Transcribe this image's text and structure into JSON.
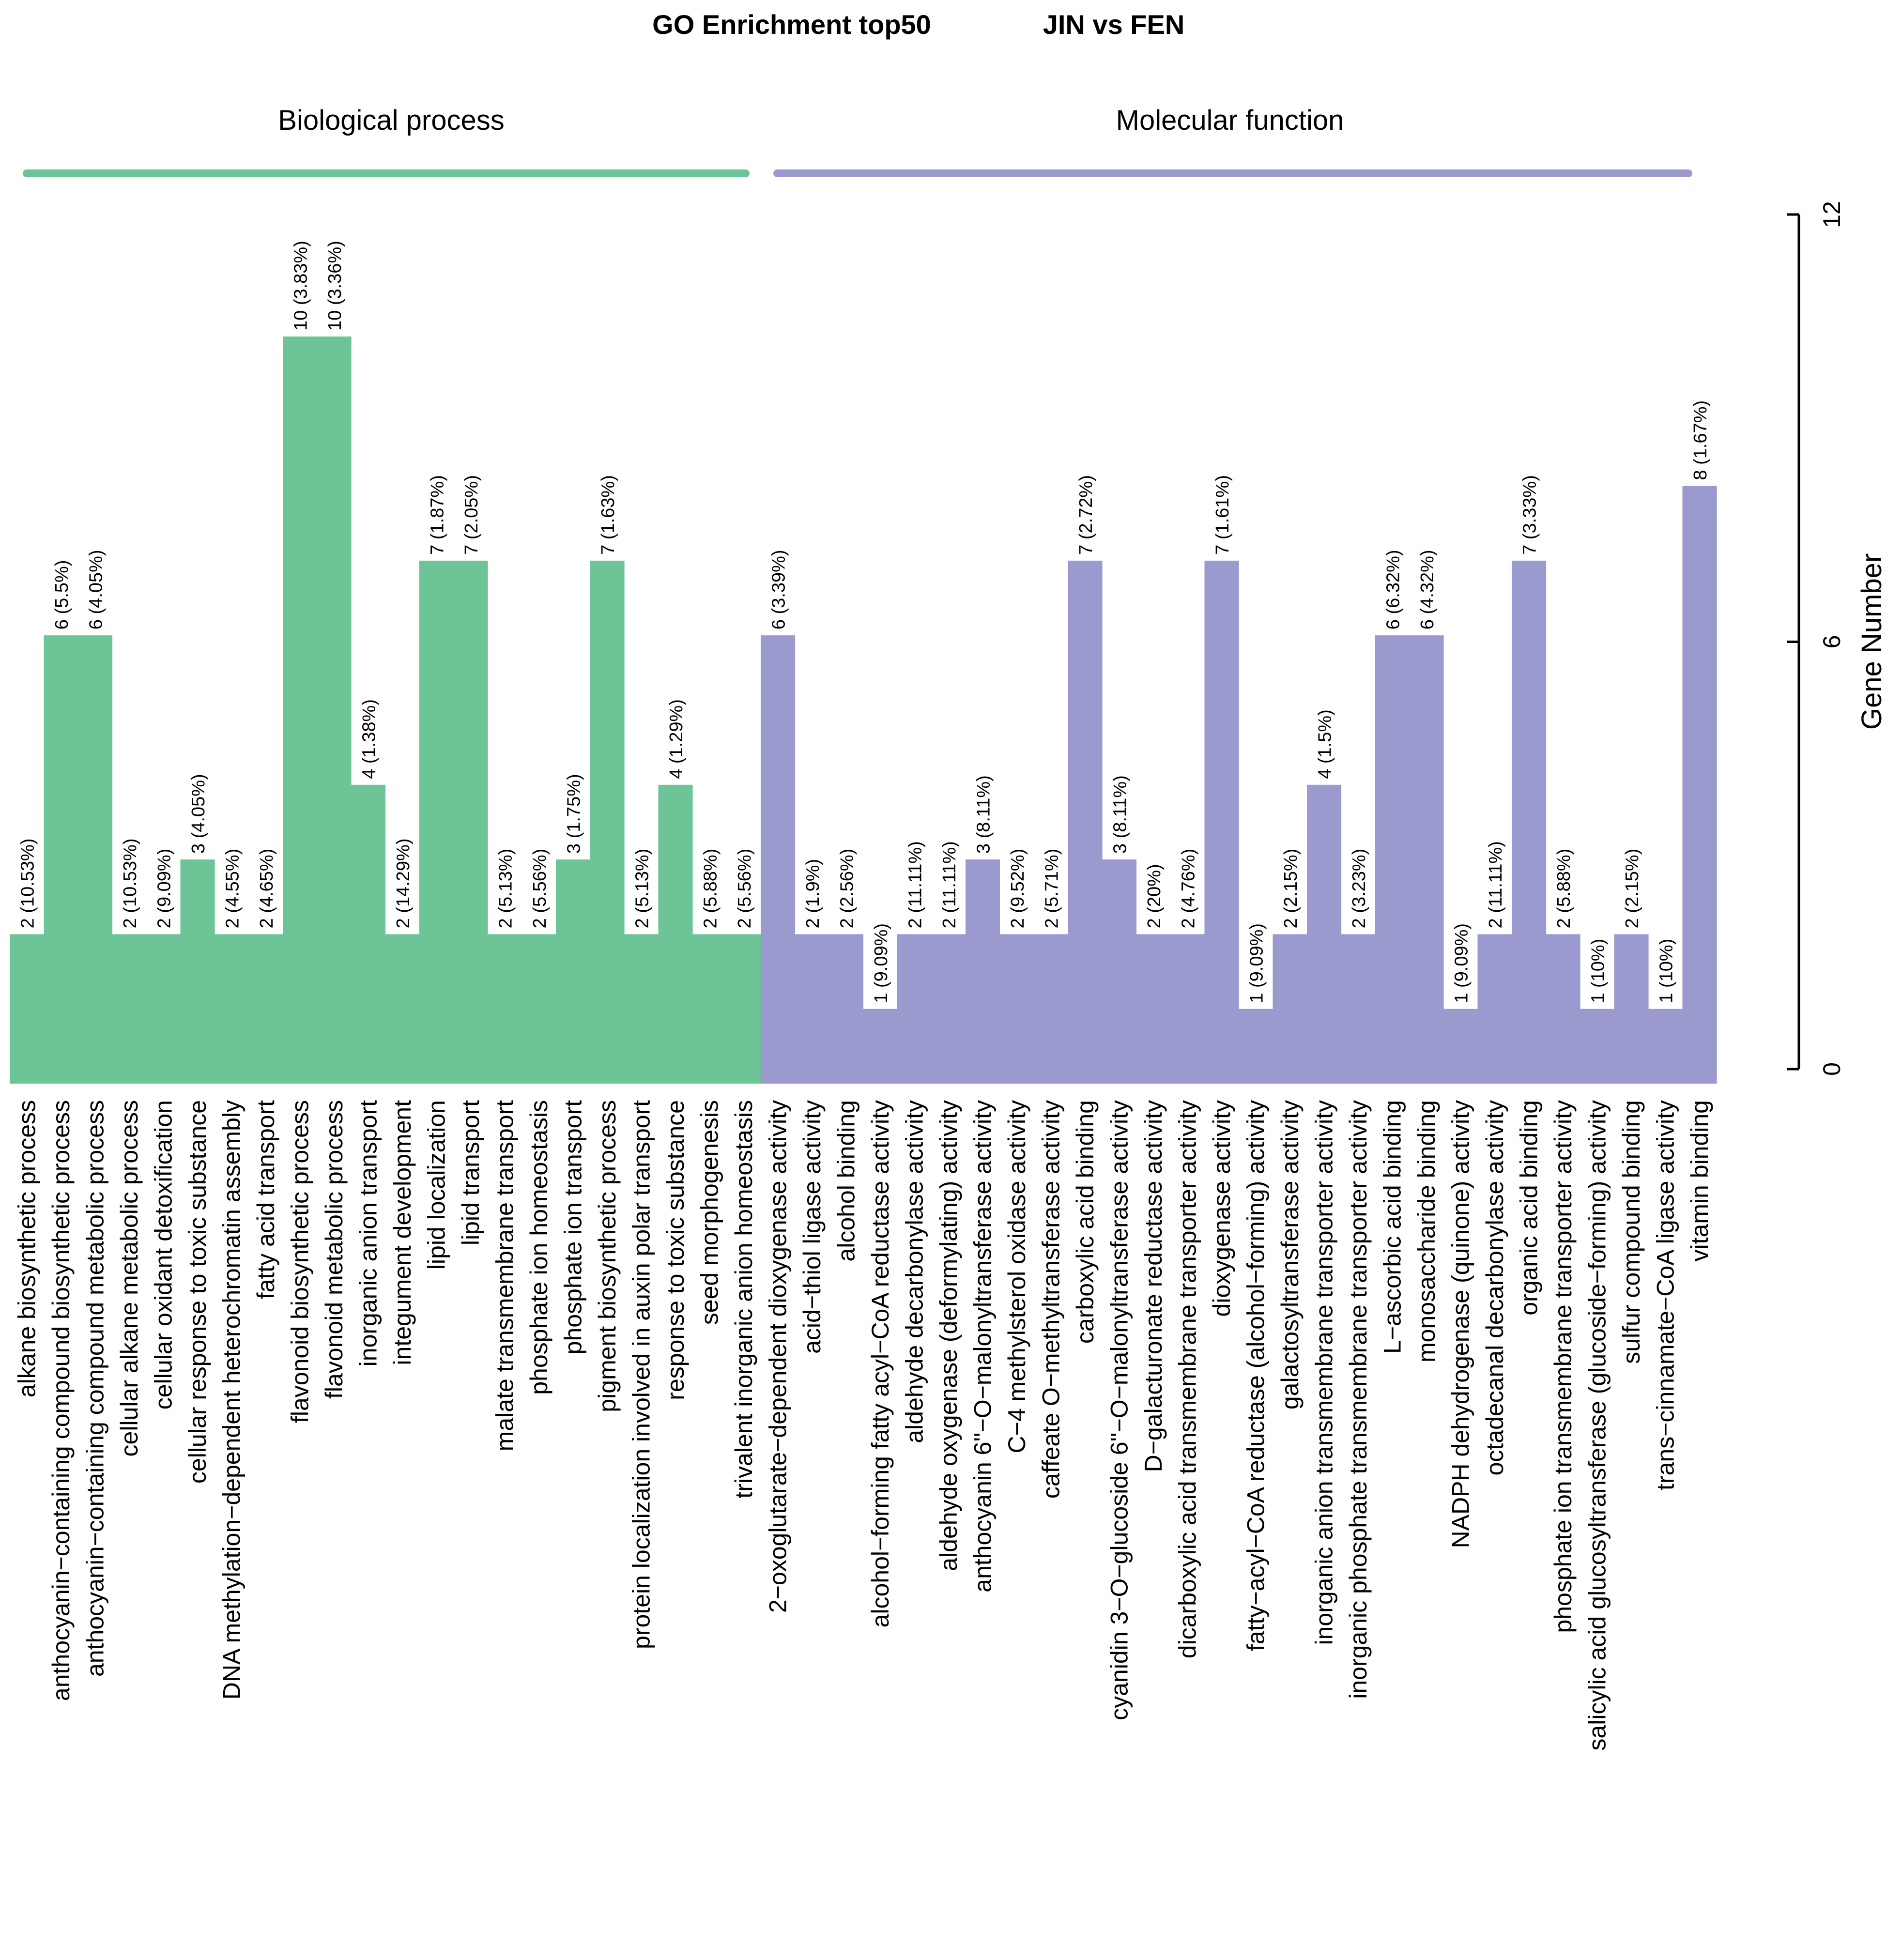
{
  "chart_data": {
    "type": "bar",
    "title_left": "GO Enrichment top50",
    "title_right": "JIN vs FEN",
    "ylabel": "Gene Number",
    "ylim": [
      0,
      12
    ],
    "yticks": [
      "0",
      "6",
      "12"
    ],
    "groups": [
      {
        "name": "Biological process",
        "color": "#6cc497"
      },
      {
        "name": "Molecular function",
        "color": "#9a9ace"
      }
    ],
    "categories": [
      {
        "label": "alkane biosynthetic process",
        "value": 2,
        "text": "2 (10.53%)",
        "group": 0
      },
      {
        "label": "anthocyanin−containing compound biosynthetic process",
        "value": 6,
        "text": "6 (5.5%)",
        "group": 0
      },
      {
        "label": "anthocyanin−containing compound metabolic process",
        "value": 6,
        "text": "6 (4.05%)",
        "group": 0
      },
      {
        "label": "cellular alkane metabolic process",
        "value": 2,
        "text": "2 (10.53%)",
        "group": 0
      },
      {
        "label": "cellular oxidant detoxification",
        "value": 2,
        "text": "2 (9.09%)",
        "group": 0
      },
      {
        "label": "cellular response to toxic substance",
        "value": 3,
        "text": "3 (4.05%)",
        "group": 0
      },
      {
        "label": "DNA methylation−dependent heterochromatin assembly",
        "value": 2,
        "text": "2 (4.55%)",
        "group": 0
      },
      {
        "label": "fatty acid transport",
        "value": 2,
        "text": "2 (4.65%)",
        "group": 0
      },
      {
        "label": "flavonoid biosynthetic process",
        "value": 10,
        "text": "10 (3.83%)",
        "group": 0
      },
      {
        "label": "flavonoid metabolic process",
        "value": 10,
        "text": "10 (3.36%)",
        "group": 0
      },
      {
        "label": "inorganic anion transport",
        "value": 4,
        "text": "4 (1.38%)",
        "group": 0
      },
      {
        "label": "integument development",
        "value": 2,
        "text": "2 (14.29%)",
        "group": 0
      },
      {
        "label": "lipid localization",
        "value": 7,
        "text": "7 (1.87%)",
        "group": 0
      },
      {
        "label": "lipid transport",
        "value": 7,
        "text": "7 (2.05%)",
        "group": 0
      },
      {
        "label": "malate transmembrane transport",
        "value": 2,
        "text": "2 (5.13%)",
        "group": 0
      },
      {
        "label": "phosphate ion homeostasis",
        "value": 2,
        "text": "2 (5.56%)",
        "group": 0
      },
      {
        "label": "phosphate ion transport",
        "value": 3,
        "text": "3 (1.75%)",
        "group": 0
      },
      {
        "label": "pigment biosynthetic process",
        "value": 7,
        "text": "7 (1.63%)",
        "group": 0
      },
      {
        "label": "protein localization involved in auxin polar transport",
        "value": 2,
        "text": "2 (5.13%)",
        "group": 0
      },
      {
        "label": "response to toxic substance",
        "value": 4,
        "text": "4 (1.29%)",
        "group": 0
      },
      {
        "label": "seed morphogenesis",
        "value": 2,
        "text": "2 (5.88%)",
        "group": 0
      },
      {
        "label": "trivalent inorganic anion homeostasis",
        "value": 2,
        "text": "2 (5.56%)",
        "group": 0
      },
      {
        "label": "2−oxoglutarate−dependent dioxygenase activity",
        "value": 6,
        "text": "6 (3.39%)",
        "group": 1
      },
      {
        "label": "acid−thiol ligase activity",
        "value": 2,
        "text": "2 (1.9%)",
        "group": 1
      },
      {
        "label": "alcohol binding",
        "value": 2,
        "text": "2 (2.56%)",
        "group": 1
      },
      {
        "label": "alcohol−forming fatty acyl−CoA reductase activity",
        "value": 1,
        "text": "1 (9.09%)",
        "group": 1
      },
      {
        "label": "aldehyde decarbonylase activity",
        "value": 2,
        "text": "2 (11.11%)",
        "group": 1
      },
      {
        "label": "aldehyde oxygenase (deformylating) activity",
        "value": 2,
        "text": "2 (11.11%)",
        "group": 1
      },
      {
        "label": "anthocyanin 6''−O−malonyltransferase activity",
        "value": 3,
        "text": "3 (8.11%)",
        "group": 1
      },
      {
        "label": "C−4 methylsterol oxidase activity",
        "value": 2,
        "text": "2 (9.52%)",
        "group": 1
      },
      {
        "label": "caffeate O−methyltransferase activity",
        "value": 2,
        "text": "2 (5.71%)",
        "group": 1
      },
      {
        "label": "carboxylic acid binding",
        "value": 7,
        "text": "7 (2.72%)",
        "group": 1
      },
      {
        "label": "cyanidin 3−O−glucoside 6''−O−malonyltransferase activity",
        "value": 3,
        "text": "3 (8.11%)",
        "group": 1
      },
      {
        "label": "D−galacturonate reductase activity",
        "value": 2,
        "text": "2 (20%)",
        "group": 1
      },
      {
        "label": "dicarboxylic acid transmembrane transporter activity",
        "value": 2,
        "text": "2 (4.76%)",
        "group": 1
      },
      {
        "label": "dioxygenase activity",
        "value": 7,
        "text": "7 (1.61%)",
        "group": 1
      },
      {
        "label": "fatty−acyl−CoA reductase (alcohol−forming) activity",
        "value": 1,
        "text": "1 (9.09%)",
        "group": 1
      },
      {
        "label": "galactosyltransferase activity",
        "value": 2,
        "text": "2 (2.15%)",
        "group": 1
      },
      {
        "label": "inorganic anion transmembrane transporter activity",
        "value": 4,
        "text": "4 (1.5%)",
        "group": 1
      },
      {
        "label": "inorganic phosphate transmembrane transporter activity",
        "value": 2,
        "text": "2 (3.23%)",
        "group": 1
      },
      {
        "label": "L−ascorbic acid binding",
        "value": 6,
        "text": "6 (6.32%)",
        "group": 1
      },
      {
        "label": "monosaccharide binding",
        "value": 6,
        "text": "6 (4.32%)",
        "group": 1
      },
      {
        "label": "NADPH dehydrogenase (quinone) activity",
        "value": 1,
        "text": "1 (9.09%)",
        "group": 1
      },
      {
        "label": "octadecanal decarbonylase activity",
        "value": 2,
        "text": "2 (11.11%)",
        "group": 1
      },
      {
        "label": "organic acid binding",
        "value": 7,
        "text": "7 (3.33%)",
        "group": 1
      },
      {
        "label": "phosphate ion transmembrane transporter activity",
        "value": 2,
        "text": "2 (5.88%)",
        "group": 1
      },
      {
        "label": "salicylic acid glucosyltransferase (glucoside−forming) activity",
        "value": 1,
        "text": "1 (10%)",
        "group": 1
      },
      {
        "label": "sulfur compound binding",
        "value": 2,
        "text": "2 (2.15%)",
        "group": 1
      },
      {
        "label": "trans−cinnamate−CoA ligase activity",
        "value": 1,
        "text": "1 (10%)",
        "group": 1
      },
      {
        "label": "vitamin binding",
        "value": 8,
        "text": "8 (1.67%)",
        "group": 1
      }
    ]
  }
}
